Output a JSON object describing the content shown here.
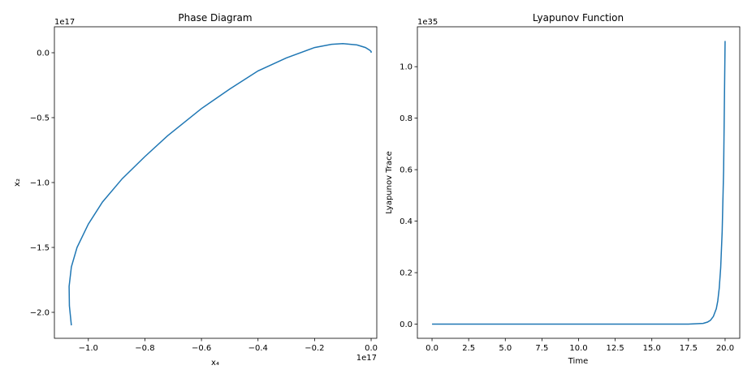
{
  "chart_data": [
    {
      "type": "line",
      "title": "Phase Diagram",
      "xlabel": "x₄",
      "ylabel": "x₂",
      "x_offset_text": "1e17",
      "y_offset_text": "1e17",
      "xlim": [
        -1.12,
        0.02
      ],
      "ylim": [
        -2.2,
        0.2
      ],
      "x_ticks": [
        -1.0,
        -0.8,
        -0.6,
        -0.4,
        -0.2,
        0.0
      ],
      "x_tick_labels": [
        "−1.0",
        "−0.8",
        "−0.6",
        "−0.4",
        "−0.2",
        "0.0"
      ],
      "y_ticks": [
        0.0,
        -0.5,
        -1.0,
        -1.5,
        -2.0
      ],
      "y_tick_labels": [
        "0.0",
        "−0.5",
        "−1.0",
        "−1.5",
        "−2.0"
      ],
      "grid": false,
      "series": [
        {
          "color": "#1f77b4",
          "x": [
            -1.06,
            -1.067,
            -1.068,
            -1.06,
            -1.04,
            -1.0,
            -0.95,
            -0.88,
            -0.8,
            -0.72,
            -0.6,
            -0.5,
            -0.4,
            -0.3,
            -0.2,
            -0.14,
            -0.1,
            -0.05,
            -0.02,
            -0.005,
            0.0,
            0.0
          ],
          "y": [
            -2.1,
            -1.95,
            -1.8,
            -1.65,
            -1.5,
            -1.32,
            -1.15,
            -0.97,
            -0.8,
            -0.64,
            -0.43,
            -0.28,
            -0.14,
            -0.04,
            0.04,
            0.065,
            0.07,
            0.06,
            0.04,
            0.02,
            0.01,
            0.0
          ]
        }
      ]
    },
    {
      "type": "line",
      "title": "Lyapunov Function",
      "xlabel": "Time",
      "ylabel": "Lyapunov Trace",
      "y_offset_text": "1e35",
      "xlim": [
        -1.0,
        21.0
      ],
      "ylim": [
        -0.055,
        1.155
      ],
      "x_ticks": [
        0.0,
        2.5,
        5.0,
        7.5,
        10.0,
        12.5,
        15.0,
        17.5,
        20.0
      ],
      "x_tick_labels": [
        "0.0",
        "2.5",
        "5.0",
        "7.5",
        "10.0",
        "12.5",
        "15.0",
        "17.5",
        "20.0"
      ],
      "y_ticks": [
        0.0,
        0.2,
        0.4,
        0.6,
        0.8,
        1.0
      ],
      "y_tick_labels": [
        "0.0",
        "0.2",
        "0.4",
        "0.6",
        "0.8",
        "1.0"
      ],
      "grid": false,
      "series": [
        {
          "color": "#1f77b4",
          "x": [
            0.0,
            17.5,
            18.5,
            18.8,
            19.0,
            19.2,
            19.4,
            19.5,
            19.6,
            19.7,
            19.8,
            19.9,
            20.0
          ],
          "y": [
            0.0,
            0.0,
            0.003,
            0.008,
            0.015,
            0.03,
            0.06,
            0.09,
            0.14,
            0.22,
            0.36,
            0.6,
            1.1
          ]
        }
      ]
    }
  ]
}
